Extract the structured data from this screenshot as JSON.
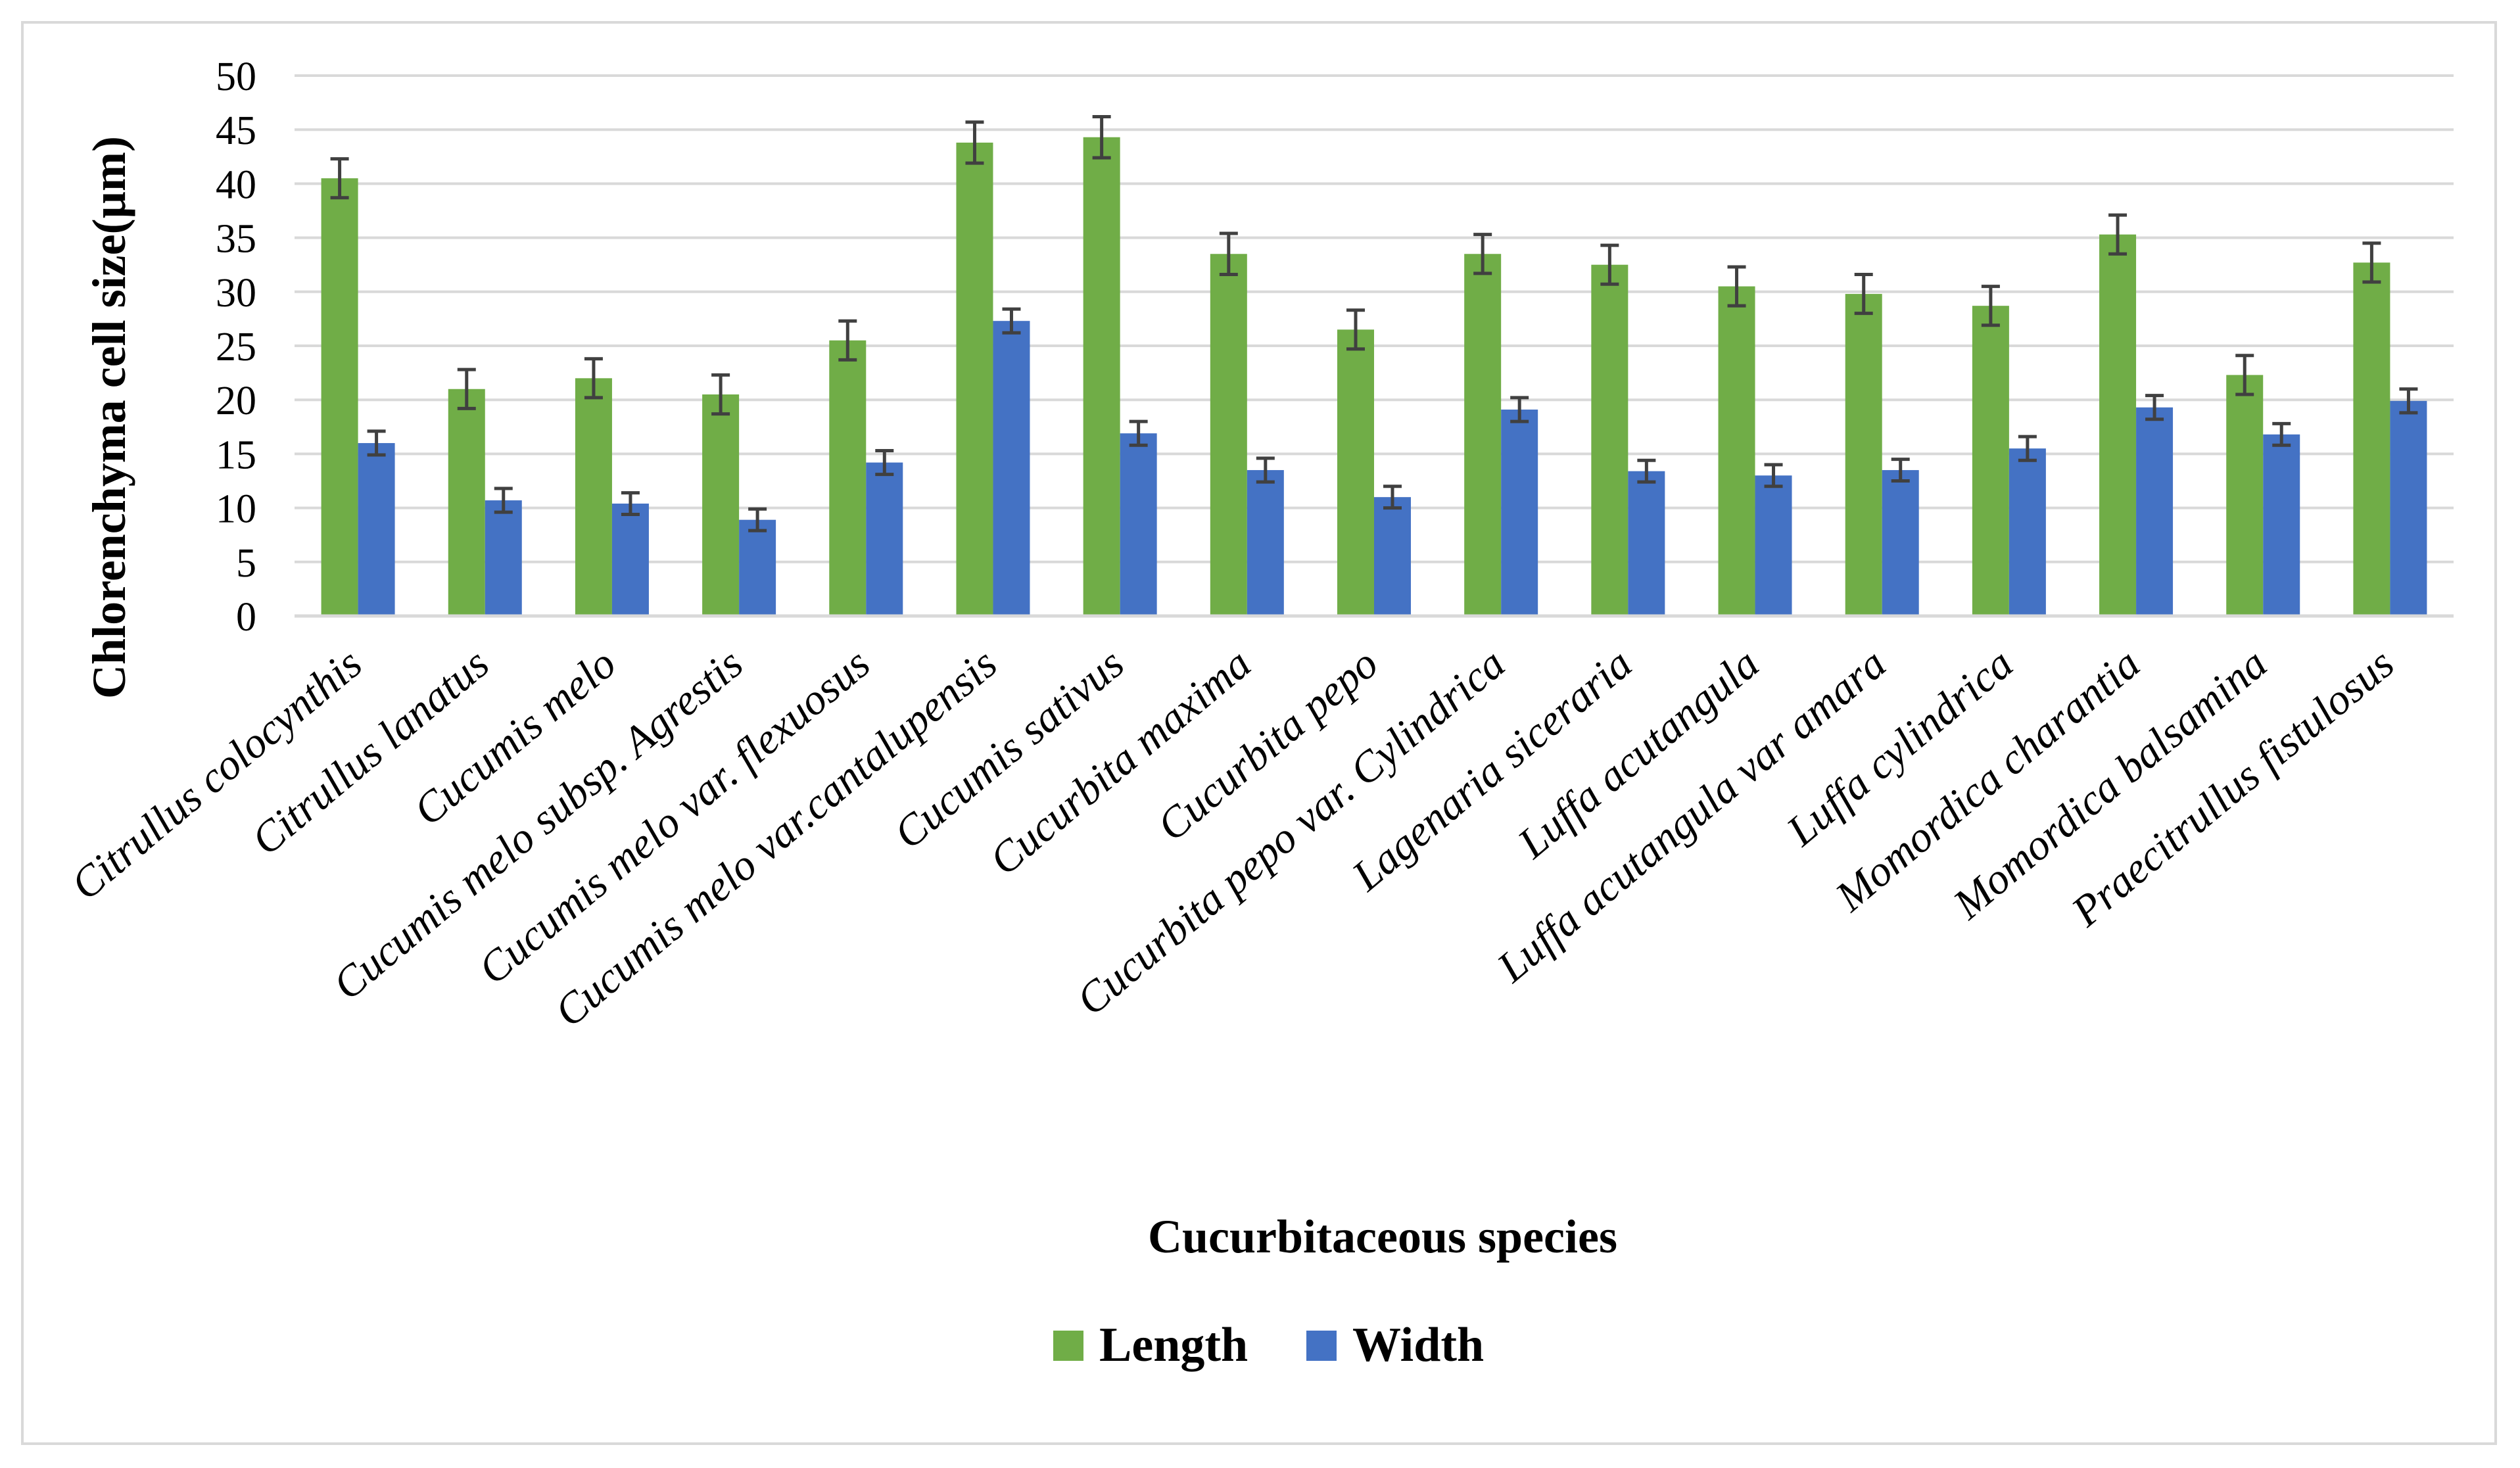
{
  "chart_data": {
    "type": "bar",
    "title": "",
    "xlabel": "Cucurbitaceous species",
    "ylabel": "Chlorenchyma cell size(µm)",
    "ylim": [
      0,
      50
    ],
    "yticks": [
      0,
      5,
      10,
      15,
      20,
      25,
      30,
      35,
      40,
      45,
      50
    ],
    "grid": true,
    "legend_position": "bottom",
    "categories": [
      "Citrullus colocynthis",
      "Citrullus lanatus",
      "Cucumis melo",
      "Cucumis melo subsp. Agrestis",
      "Cucumis melo var. flexuosus",
      "Cucumis melo var.cantalupensis",
      "Cucumis sativus",
      "Cucurbita maxima",
      "Cucurbita pepo",
      "Cucurbita pepo var. Cylindrica",
      "Lagenaria siceraria",
      "Luffa acutangula",
      "Luffa acutangula var amara",
      "Luffa cylindrica",
      "Momordica charantia",
      "Momordica balsamina",
      "Praecitrullus fistulosus"
    ],
    "series": [
      {
        "name": "Length",
        "color": "#70ad47",
        "values": [
          40.5,
          21.0,
          22.0,
          20.5,
          25.5,
          43.8,
          44.3,
          33.5,
          26.5,
          33.5,
          32.5,
          30.5,
          29.8,
          28.7,
          35.3,
          22.3,
          32.7
        ],
        "errors": [
          1.8,
          1.8,
          1.8,
          1.8,
          1.8,
          1.9,
          1.9,
          1.9,
          1.8,
          1.8,
          1.8,
          1.8,
          1.8,
          1.8,
          1.8,
          1.8,
          1.8
        ]
      },
      {
        "name": "Width",
        "color": "#4472c4",
        "values": [
          16.0,
          10.7,
          10.4,
          8.9,
          14.2,
          27.3,
          16.9,
          13.5,
          11.0,
          19.1,
          13.4,
          13.0,
          13.5,
          15.5,
          19.3,
          16.8,
          19.9
        ],
        "errors": [
          1.1,
          1.1,
          1.0,
          1.0,
          1.1,
          1.1,
          1.1,
          1.1,
          1.0,
          1.1,
          1.0,
          1.0,
          1.0,
          1.1,
          1.1,
          1.0,
          1.1
        ]
      }
    ]
  }
}
